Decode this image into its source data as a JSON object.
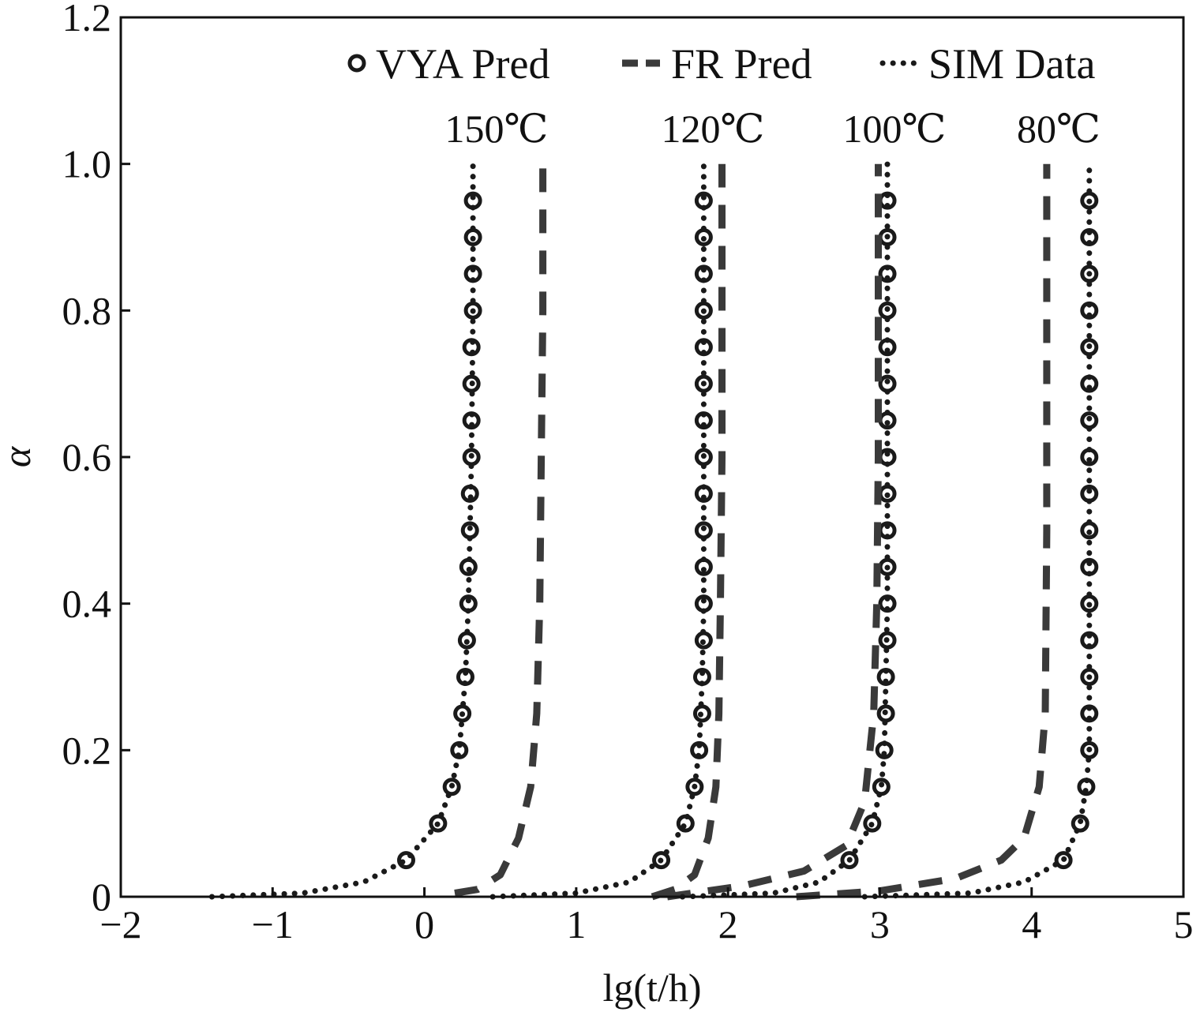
{
  "chart_data": {
    "type": "line",
    "title": "",
    "xlabel": "lg(t/h)",
    "ylabel": "α",
    "xlim": [
      -2,
      5
    ],
    "ylim": [
      0,
      1.2
    ],
    "xticks": [
      -2,
      -1,
      0,
      1,
      2,
      3,
      4,
      5
    ],
    "xtick_labels": [
      "−2",
      "−1",
      "0",
      "1",
      "2",
      "3",
      "4",
      "5"
    ],
    "yticks": [
      0,
      0.2,
      0.4,
      0.6,
      0.8,
      1.0,
      1.2
    ],
    "ytick_labels": [
      "0",
      "0.2",
      "0.4",
      "0.6",
      "0.8",
      "1.0",
      "1.2"
    ],
    "grid": false,
    "legend": {
      "placement": "top-right",
      "entries": [
        {
          "name": "VYA Pred",
          "style": "markers-circle"
        },
        {
          "name": "FR Pred",
          "style": "dashed"
        },
        {
          "name": "SIM Data",
          "style": "dotted"
        }
      ]
    },
    "curve_labels": [
      "150℃",
      "120℃",
      "100℃",
      "80℃"
    ],
    "series": [
      {
        "name": "VYA Pred 150℃",
        "kind": "VYA Pred",
        "temperature": "150℃",
        "x": [
          -0.12,
          0.09,
          0.18,
          0.23,
          0.25,
          0.27,
          0.28,
          0.29,
          0.29,
          0.3,
          0.3,
          0.31,
          0.31,
          0.31,
          0.31,
          0.32,
          0.32,
          0.32,
          0.32
        ],
        "y": [
          0.05,
          0.1,
          0.15,
          0.2,
          0.25,
          0.3,
          0.35,
          0.4,
          0.45,
          0.5,
          0.55,
          0.6,
          0.65,
          0.7,
          0.75,
          0.8,
          0.85,
          0.9,
          0.95
        ]
      },
      {
        "name": "VYA Pred 120℃",
        "kind": "VYA Pred",
        "temperature": "120℃",
        "x": [
          1.56,
          1.72,
          1.78,
          1.81,
          1.83,
          1.83,
          1.84,
          1.84,
          1.84,
          1.84,
          1.84,
          1.84,
          1.84,
          1.84,
          1.84,
          1.84,
          1.84,
          1.84,
          1.84
        ],
        "y": [
          0.05,
          0.1,
          0.15,
          0.2,
          0.25,
          0.3,
          0.35,
          0.4,
          0.45,
          0.5,
          0.55,
          0.6,
          0.65,
          0.7,
          0.75,
          0.8,
          0.85,
          0.9,
          0.95
        ]
      },
      {
        "name": "VYA Pred 100℃",
        "kind": "VYA Pred",
        "temperature": "100℃",
        "x": [
          2.8,
          2.95,
          3.01,
          3.03,
          3.04,
          3.04,
          3.05,
          3.05,
          3.05,
          3.05,
          3.05,
          3.05,
          3.05,
          3.05,
          3.05,
          3.05,
          3.05,
          3.05,
          3.05
        ],
        "y": [
          0.05,
          0.1,
          0.15,
          0.2,
          0.25,
          0.3,
          0.35,
          0.4,
          0.45,
          0.5,
          0.55,
          0.6,
          0.65,
          0.7,
          0.75,
          0.8,
          0.85,
          0.9,
          0.95
        ]
      },
      {
        "name": "VYA Pred 80℃",
        "kind": "VYA Pred",
        "temperature": "80℃",
        "x": [
          4.21,
          4.32,
          4.36,
          4.38,
          4.38,
          4.38,
          4.38,
          4.38,
          4.38,
          4.38,
          4.38,
          4.38,
          4.38,
          4.38,
          4.38,
          4.38,
          4.38,
          4.38,
          4.38
        ],
        "y": [
          0.05,
          0.1,
          0.15,
          0.2,
          0.25,
          0.3,
          0.35,
          0.4,
          0.45,
          0.5,
          0.55,
          0.6,
          0.65,
          0.7,
          0.75,
          0.8,
          0.85,
          0.9,
          0.95
        ]
      },
      {
        "name": "FR Pred 150℃",
        "kind": "FR Pred",
        "temperature": "150℃",
        "x": [
          0.2,
          0.35,
          0.5,
          0.62,
          0.7,
          0.74,
          0.76,
          0.77,
          0.78,
          0.78
        ],
        "y": [
          0.005,
          0.01,
          0.03,
          0.08,
          0.15,
          0.25,
          0.4,
          0.6,
          0.8,
          1.0
        ]
      },
      {
        "name": "FR Pred 120℃",
        "kind": "FR Pred",
        "temperature": "120℃",
        "x": [
          1.5,
          1.65,
          1.78,
          1.87,
          1.92,
          1.94,
          1.95,
          1.96,
          1.96,
          1.96
        ],
        "y": [
          0.0,
          0.01,
          0.03,
          0.08,
          0.15,
          0.25,
          0.4,
          0.6,
          0.8,
          1.0
        ]
      },
      {
        "name": "FR Pred 100℃",
        "kind": "FR Pred",
        "temperature": "100℃",
        "x": [
          1.6,
          2.1,
          2.5,
          2.78,
          2.9,
          2.96,
          2.98,
          2.99,
          2.99,
          2.99
        ],
        "y": [
          0.0,
          0.015,
          0.035,
          0.07,
          0.13,
          0.25,
          0.4,
          0.6,
          0.8,
          1.0
        ]
      },
      {
        "name": "FR Pred 80℃",
        "kind": "FR Pred",
        "temperature": "80℃",
        "x": [
          2.45,
          3.0,
          3.5,
          3.8,
          3.95,
          4.05,
          4.09,
          4.1,
          4.1,
          4.1
        ],
        "y": [
          0.0,
          0.008,
          0.025,
          0.05,
          0.08,
          0.15,
          0.25,
          0.5,
          0.8,
          1.0
        ]
      },
      {
        "name": "SIM Data 150℃",
        "kind": "SIM Data",
        "temperature": "150℃",
        "x": [
          -1.4,
          -0.8,
          -0.4,
          -0.12,
          0.09,
          0.18,
          0.23,
          0.27,
          0.29,
          0.3,
          0.31,
          0.32,
          0.32
        ],
        "y": [
          0.0,
          0.005,
          0.02,
          0.05,
          0.1,
          0.15,
          0.2,
          0.3,
          0.4,
          0.5,
          0.6,
          0.8,
          1.0
        ]
      },
      {
        "name": "SIM Data 120℃",
        "kind": "SIM Data",
        "temperature": "120℃",
        "x": [
          0.45,
          1.0,
          1.35,
          1.56,
          1.72,
          1.78,
          1.81,
          1.83,
          1.84,
          1.84,
          1.84,
          1.84
        ],
        "y": [
          0.0,
          0.005,
          0.02,
          0.05,
          0.1,
          0.15,
          0.2,
          0.3,
          0.4,
          0.6,
          0.8,
          1.0
        ]
      },
      {
        "name": "SIM Data 100℃",
        "kind": "SIM Data",
        "temperature": "100℃",
        "x": [
          1.7,
          2.3,
          2.6,
          2.8,
          2.95,
          3.01,
          3.03,
          3.04,
          3.05,
          3.05,
          3.05,
          3.05
        ],
        "y": [
          0.0,
          0.005,
          0.02,
          0.05,
          0.1,
          0.15,
          0.2,
          0.3,
          0.4,
          0.6,
          0.8,
          1.0
        ]
      },
      {
        "name": "SIM Data 80℃",
        "kind": "SIM Data",
        "temperature": "80℃",
        "x": [
          2.9,
          3.6,
          3.95,
          4.21,
          4.32,
          4.36,
          4.38,
          4.38,
          4.38,
          4.38,
          4.38
        ],
        "y": [
          0.0,
          0.005,
          0.02,
          0.05,
          0.1,
          0.15,
          0.2,
          0.4,
          0.6,
          0.8,
          1.0
        ]
      }
    ]
  }
}
